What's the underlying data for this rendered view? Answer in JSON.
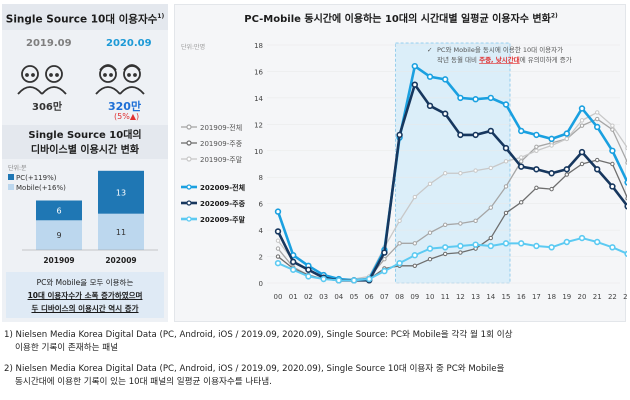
{
  "left": {
    "title": "Single Source 10대 이용자수",
    "title_sup": "1)",
    "year_a": "2019.09",
    "year_b": "2020.09",
    "count_a": "306만",
    "count_b": "320만",
    "change": "(5%▲)",
    "subtitle_line1": "Single Source 10대의",
    "subtitle_line2": "디바이스별 이용시간 변화",
    "note_line1": "PC와 Mobile을 모두 이용하는",
    "note_line2": "10대 이용자수가 소폭 증가하였으며",
    "note_line3": "두 디바이스의 이용시간 역시 증가"
  },
  "chart_data": [
    {
      "type": "bar",
      "stacked": true,
      "yunit": "단위:분",
      "categories": [
        "201909",
        "202009"
      ],
      "series": [
        {
          "name": "Mobile(+16%)",
          "values": [
            9,
            11
          ]
        },
        {
          "name": "PC(+119%)",
          "values": [
            6,
            13
          ]
        }
      ]
    },
    {
      "type": "line",
      "title": "PC-Mobile 동시간에 이용하는 10대의 시간대별 일평균 이용자수 변화",
      "title_sup": "2)",
      "yunit": "단위:만명",
      "ylim": [
        0,
        18
      ],
      "yticks": [
        0,
        2,
        4,
        6,
        8,
        10,
        12,
        14,
        16,
        18
      ],
      "x": [
        "00",
        "01",
        "02",
        "03",
        "04",
        "05",
        "06",
        "07",
        "08",
        "09",
        "10",
        "11",
        "12",
        "13",
        "14",
        "15",
        "16",
        "17",
        "18",
        "19",
        "20",
        "21",
        "22",
        "23"
      ],
      "highlight_range": [
        "08",
        "15"
      ],
      "annotation_line1": "PC와 Mobile을 동시에 이용한 10대 이용자가",
      "annotation_line2_pre": "작년 동월 대비 ",
      "annotation_line2_em": "주중, 낮시간대",
      "annotation_line2_post": "에 유의미하게 증가",
      "legend_placement": "left",
      "series": [
        {
          "name": "201909-전체",
          "color": "#a6a6a6",
          "values": [
            2.6,
            1.2,
            0.6,
            0.3,
            0.2,
            0.2,
            0.4,
            1.8,
            3.0,
            3.0,
            3.8,
            4.4,
            4.5,
            4.7,
            5.7,
            7.3,
            9.2,
            10.3,
            10.6,
            10.9,
            11.9,
            12.4,
            11.6,
            9.1
          ]
        },
        {
          "name": "201909-주중",
          "color": "#6e6e6e",
          "values": [
            2.0,
            1.1,
            0.6,
            0.3,
            0.2,
            0.2,
            0.3,
            1.1,
            1.3,
            1.3,
            1.8,
            2.2,
            2.3,
            2.6,
            3.4,
            5.3,
            6.1,
            7.2,
            7.1,
            8.2,
            9.0,
            9.3,
            9.0,
            6.4
          ]
        },
        {
          "name": "201909-주말",
          "color": "#c8c8c8",
          "values": [
            3.2,
            1.7,
            1.0,
            0.5,
            0.3,
            0.3,
            0.5,
            2.7,
            4.7,
            6.5,
            7.5,
            8.3,
            8.3,
            8.5,
            8.7,
            9.2,
            9.5,
            10.0,
            10.4,
            10.9,
            12.3,
            12.9,
            11.9,
            10.2
          ]
        },
        {
          "name": "202009-전체",
          "color": "#1aa0e0",
          "values": [
            5.4,
            2.1,
            1.3,
            0.6,
            0.3,
            0.2,
            0.3,
            2.5,
            11.0,
            16.4,
            15.6,
            15.4,
            14.0,
            13.9,
            14.0,
            13.5,
            11.5,
            11.2,
            10.9,
            11.3,
            13.2,
            11.8,
            10.0,
            7.6
          ]
        },
        {
          "name": "202009-주중",
          "color": "#17375e",
          "values": [
            3.9,
            1.6,
            1.0,
            0.4,
            0.2,
            0.2,
            0.2,
            2.3,
            11.2,
            15.0,
            13.4,
            12.8,
            11.2,
            11.2,
            11.5,
            10.2,
            8.8,
            8.6,
            8.3,
            8.6,
            9.9,
            8.6,
            7.3,
            5.8
          ]
        },
        {
          "name": "202009-주말",
          "color": "#5ccaf2",
          "values": [
            1.5,
            1.0,
            0.5,
            0.3,
            0.2,
            0.2,
            0.3,
            0.9,
            1.5,
            2.1,
            2.6,
            2.7,
            2.8,
            2.9,
            2.8,
            3.0,
            3.0,
            2.8,
            2.7,
            3.1,
            3.4,
            3.1,
            2.7,
            2.2
          ]
        }
      ]
    }
  ],
  "footnotes": {
    "f1_line1": "1) Nielsen Media Korea Digital Data (PC, Android, iOS / 2019.09, 2020.09), Single Source: PC와 Mobile을 각각 월 1회 이상",
    "f1_line2": "이용한 기록이 존재하는 패널",
    "f2_line1": "2) Nielsen Media Korea Digital Data (PC, Android, iOS / 2019.09, 2020.09), Single Source 10대 이용자 중 PC와 Mobile을",
    "f2_line2": "동시간대에 이용한 기록이 있는 10대 패널의 일평균 이용자수를 나타냄."
  },
  "colors": {
    "accent": "#1aa0e0",
    "dark": "#17375e",
    "highlight": "#e03030"
  }
}
